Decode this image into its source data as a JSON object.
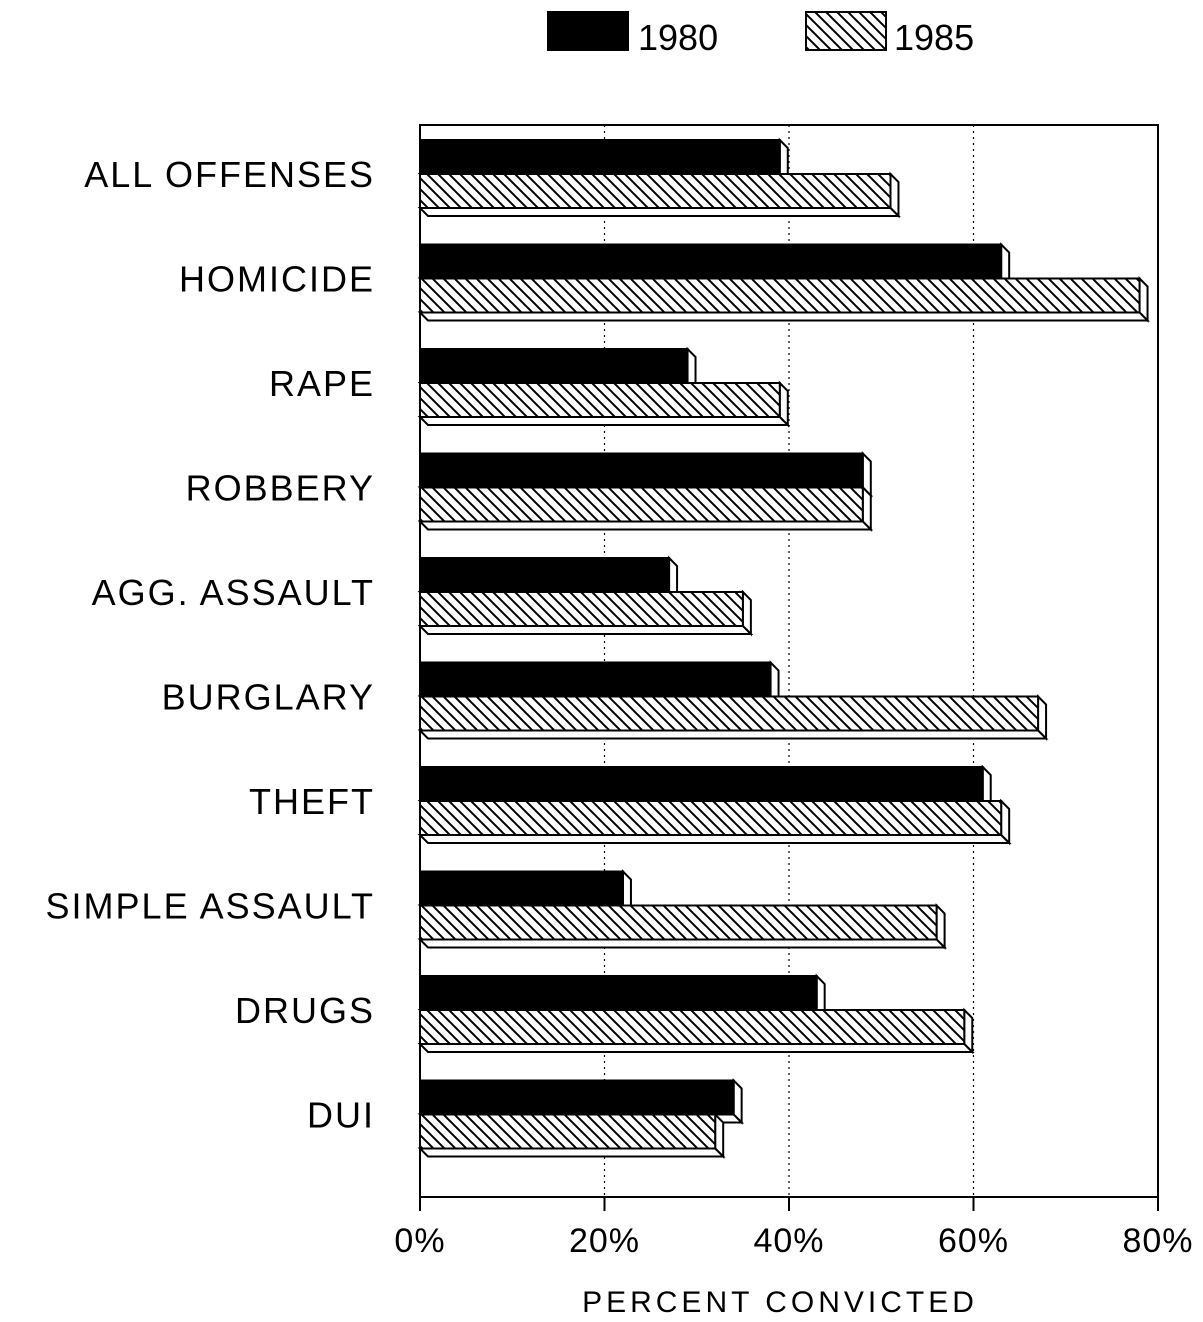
{
  "chart_data": {
    "type": "bar",
    "orientation": "horizontal",
    "categories": [
      "ALL OFFENSES",
      "HOMICIDE",
      "RAPE",
      "ROBBERY",
      "AGG. ASSAULT",
      "BURGLARY",
      "THEFT",
      "SIMPLE ASSAULT",
      "DRUGS",
      "DUI"
    ],
    "series": [
      {
        "name": "1980",
        "values": [
          39,
          63,
          29,
          48,
          27,
          38,
          61,
          22,
          43,
          34
        ],
        "color": "#000000",
        "fill": "solid"
      },
      {
        "name": "1985",
        "values": [
          51,
          78,
          39,
          48,
          35,
          67,
          63,
          56,
          59,
          32
        ],
        "color": "#000000",
        "fill": "diagonal-hatch"
      }
    ],
    "xlabel": "PERCENT CONVICTED",
    "ylabel": "",
    "xlim": [
      0,
      80
    ],
    "xticks": [
      "0%",
      "20%",
      "40%",
      "60%",
      "80%"
    ],
    "grid": "vertical dotted",
    "legend": "top-center"
  }
}
